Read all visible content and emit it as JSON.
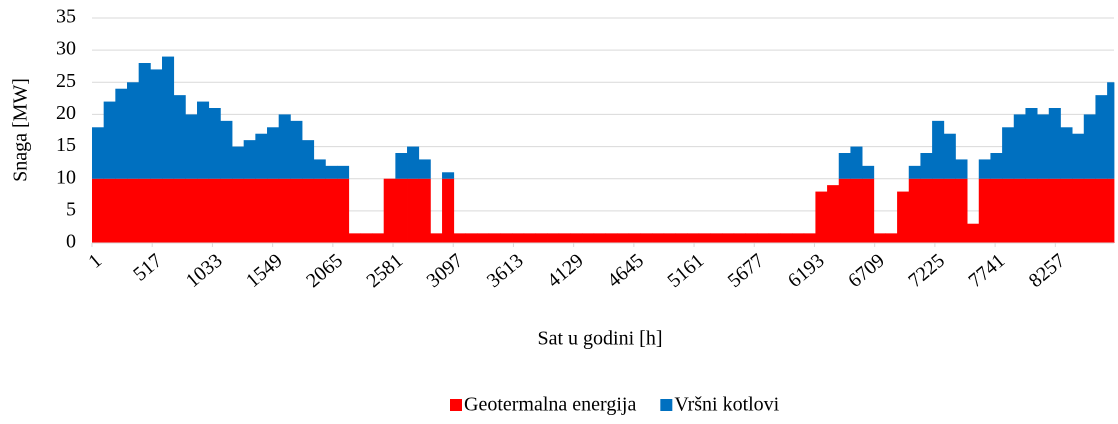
{
  "chart_data": {
    "type": "stacked_bar",
    "xlabel": "Sat u godini [h]",
    "ylabel": "Snaga [MW]",
    "x": [
      1,
      101,
      201,
      301,
      401,
      501,
      601,
      701,
      801,
      901,
      1001,
      1101,
      1201,
      1301,
      1401,
      1501,
      1601,
      1701,
      1801,
      1901,
      2001,
      2101,
      2201,
      2301,
      2401,
      2501,
      2601,
      2701,
      2801,
      2901,
      3001,
      3101,
      3201,
      3301,
      3401,
      3501,
      3601,
      3701,
      3801,
      3901,
      4001,
      4101,
      4201,
      4301,
      4401,
      4501,
      4601,
      4701,
      4801,
      4901,
      5001,
      5101,
      5201,
      5301,
      5401,
      5501,
      5601,
      5701,
      5801,
      5901,
      6001,
      6101,
      6201,
      6301,
      6401,
      6501,
      6601,
      6701,
      6801,
      6901,
      7001,
      7101,
      7201,
      7301,
      7401,
      7501,
      7601,
      7701,
      7801,
      7901,
      8001,
      8101,
      8201,
      8301,
      8401,
      8501,
      8601,
      8701
    ],
    "series": [
      {
        "name": "Geotermalna energija",
        "color": "#ff0000",
        "values": [
          10,
          10,
          10,
          10,
          10,
          10,
          10,
          10,
          10,
          10,
          10,
          10,
          10,
          10,
          10,
          10,
          10,
          10,
          10,
          10,
          10,
          10,
          1.5,
          1.5,
          1.5,
          10,
          10,
          10,
          10,
          1.5,
          10,
          1.5,
          1.5,
          1.5,
          1.5,
          1.5,
          1.5,
          1.5,
          1.5,
          1.5,
          1.5,
          1.5,
          1.5,
          1.5,
          1.5,
          1.5,
          1.5,
          1.5,
          1.5,
          1.5,
          1.5,
          1.5,
          1.5,
          1.5,
          1.5,
          1.5,
          1.5,
          1.5,
          1.5,
          1.5,
          1.5,
          1.5,
          8,
          9,
          10,
          10,
          10,
          1.5,
          1.5,
          8,
          10,
          10,
          10,
          10,
          10,
          3,
          10,
          10,
          10,
          10,
          10,
          10,
          10,
          10,
          10,
          10,
          10,
          10
        ]
      },
      {
        "name": "Vršni kotlovi",
        "color": "#0070c0",
        "values": [
          8,
          12,
          14,
          15,
          18,
          17,
          19,
          13,
          10,
          12,
          11,
          9,
          5,
          6,
          7,
          8,
          10,
          9,
          6,
          3,
          2,
          2,
          0,
          0,
          0,
          0,
          4,
          5,
          3,
          0,
          1,
          0,
          0,
          0,
          0,
          0,
          0,
          0,
          0,
          0,
          0,
          0,
          0,
          0,
          0,
          0,
          0,
          0,
          0,
          0,
          0,
          0,
          0,
          0,
          0,
          0,
          0,
          0,
          0,
          0,
          0,
          0,
          0,
          0,
          4,
          5,
          2,
          0,
          0,
          0,
          2,
          4,
          9,
          7,
          3,
          0,
          3,
          4,
          8,
          10,
          11,
          10,
          11,
          8,
          7,
          10,
          13,
          15
        ]
      }
    ],
    "xlim": [
      1,
      8760
    ],
    "xticks": [
      1,
      517,
      1033,
      1549,
      2065,
      2581,
      3097,
      3613,
      4129,
      4645,
      5161,
      5677,
      6193,
      6709,
      7225,
      7741,
      8257
    ],
    "ylim": [
      0,
      35
    ],
    "yticks": [
      0,
      5,
      10,
      15,
      20,
      25,
      30,
      35
    ],
    "grid": true,
    "legend": "bottom"
  }
}
